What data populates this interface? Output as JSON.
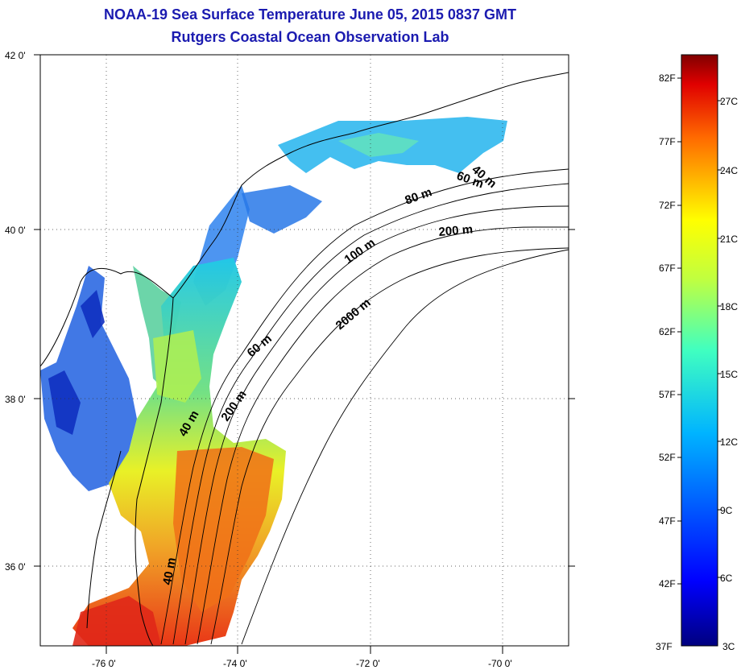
{
  "title": {
    "line1": "NOAA-19 Sea Surface Temperature June 05, 2015 0837 GMT",
    "line2": "Rutgers Coastal Ocean Observation Lab"
  },
  "axes": {
    "lat_ticks": [
      "42 0'",
      "40 0'",
      "38 0'",
      "36 0'"
    ],
    "lon_ticks": [
      "-76 0'",
      "-74 0'",
      "-72 0'",
      "-70 0'"
    ]
  },
  "contours": {
    "c1": "40 m",
    "c2": "60 m",
    "c3": "80 m",
    "c4": "200 m",
    "c5": "100 m",
    "c6": "2000 m",
    "c7": "60 m",
    "c8": "200 m",
    "c9": "40 m",
    "c10": "40 m"
  },
  "colorbar": {
    "f_labels": [
      "82F",
      "77F",
      "72F",
      "67F",
      "62F",
      "57F",
      "52F",
      "47F",
      "42F",
      "37F"
    ],
    "c_labels": [
      "27C",
      "24C",
      "21C",
      "18C",
      "15C",
      "12C",
      "9C",
      "6C",
      "3C"
    ]
  },
  "colors": {
    "title": "#1b1bb0",
    "land": "#ffffff",
    "cold": "#0a1a9a",
    "warm": "#d81010"
  }
}
